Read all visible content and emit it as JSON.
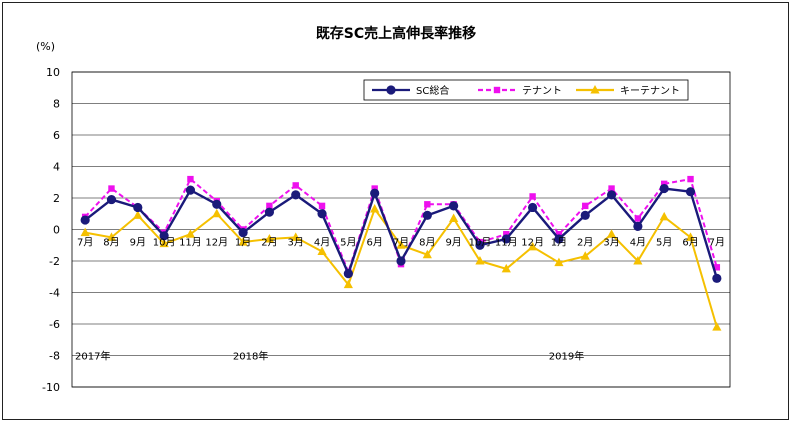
{
  "chart_data": {
    "type": "line",
    "title": "既存SC売上高伸長率推移",
    "ylabel": "(%)",
    "xlabel": "",
    "ylim": [
      -10,
      10
    ],
    "yticks": [
      10,
      8,
      6,
      4,
      2,
      0,
      -2,
      -4,
      -6,
      -8,
      -10
    ],
    "grid": true,
    "legend_position": "top-right",
    "categories": [
      "7月",
      "8月",
      "9月",
      "10月",
      "11月",
      "12月",
      "1月",
      "2月",
      "3月",
      "4月",
      "5月",
      "6月",
      "7月",
      "8月",
      "9月",
      "10月",
      "11月",
      "12月",
      "1月",
      "2月",
      "3月",
      "4月",
      "5月",
      "6月",
      "7月"
    ],
    "year_labels": [
      {
        "label": "2017年",
        "index": 0
      },
      {
        "label": "2018年",
        "index": 6
      },
      {
        "label": "2019年",
        "index": 18
      }
    ],
    "series": [
      {
        "name": "SC総合",
        "color": "#1a1a7a",
        "marker": "circle",
        "dash": "solid",
        "values": [
          0.6,
          1.9,
          1.4,
          -0.4,
          2.5,
          1.6,
          -0.2,
          1.1,
          2.2,
          1.0,
          -2.8,
          2.3,
          -2.0,
          0.9,
          1.5,
          -1.0,
          -0.6,
          1.4,
          -0.6,
          0.9,
          2.2,
          0.2,
          2.6,
          2.4,
          -3.1
        ]
      },
      {
        "name": "テナント",
        "color": "#ee10ee",
        "marker": "square",
        "dash": "dashed",
        "values": [
          0.8,
          2.6,
          1.4,
          -0.2,
          3.2,
          1.8,
          0.0,
          1.5,
          2.8,
          1.5,
          -2.7,
          2.6,
          -2.2,
          1.6,
          1.6,
          -0.8,
          -0.3,
          2.1,
          -0.3,
          1.5,
          2.6,
          0.7,
          2.9,
          3.2,
          -2.4
        ]
      },
      {
        "name": "キーテナント",
        "color": "#f5c000",
        "marker": "triangle",
        "dash": "solid",
        "values": [
          -0.2,
          -0.5,
          0.9,
          -0.9,
          -0.3,
          1.0,
          -0.8,
          -0.6,
          -0.5,
          -1.4,
          -3.5,
          1.3,
          -1.0,
          -1.6,
          0.7,
          -2.0,
          -2.5,
          -1.1,
          -2.1,
          -1.7,
          -0.3,
          -2.0,
          0.8,
          -0.5,
          -6.2
        ]
      }
    ]
  }
}
